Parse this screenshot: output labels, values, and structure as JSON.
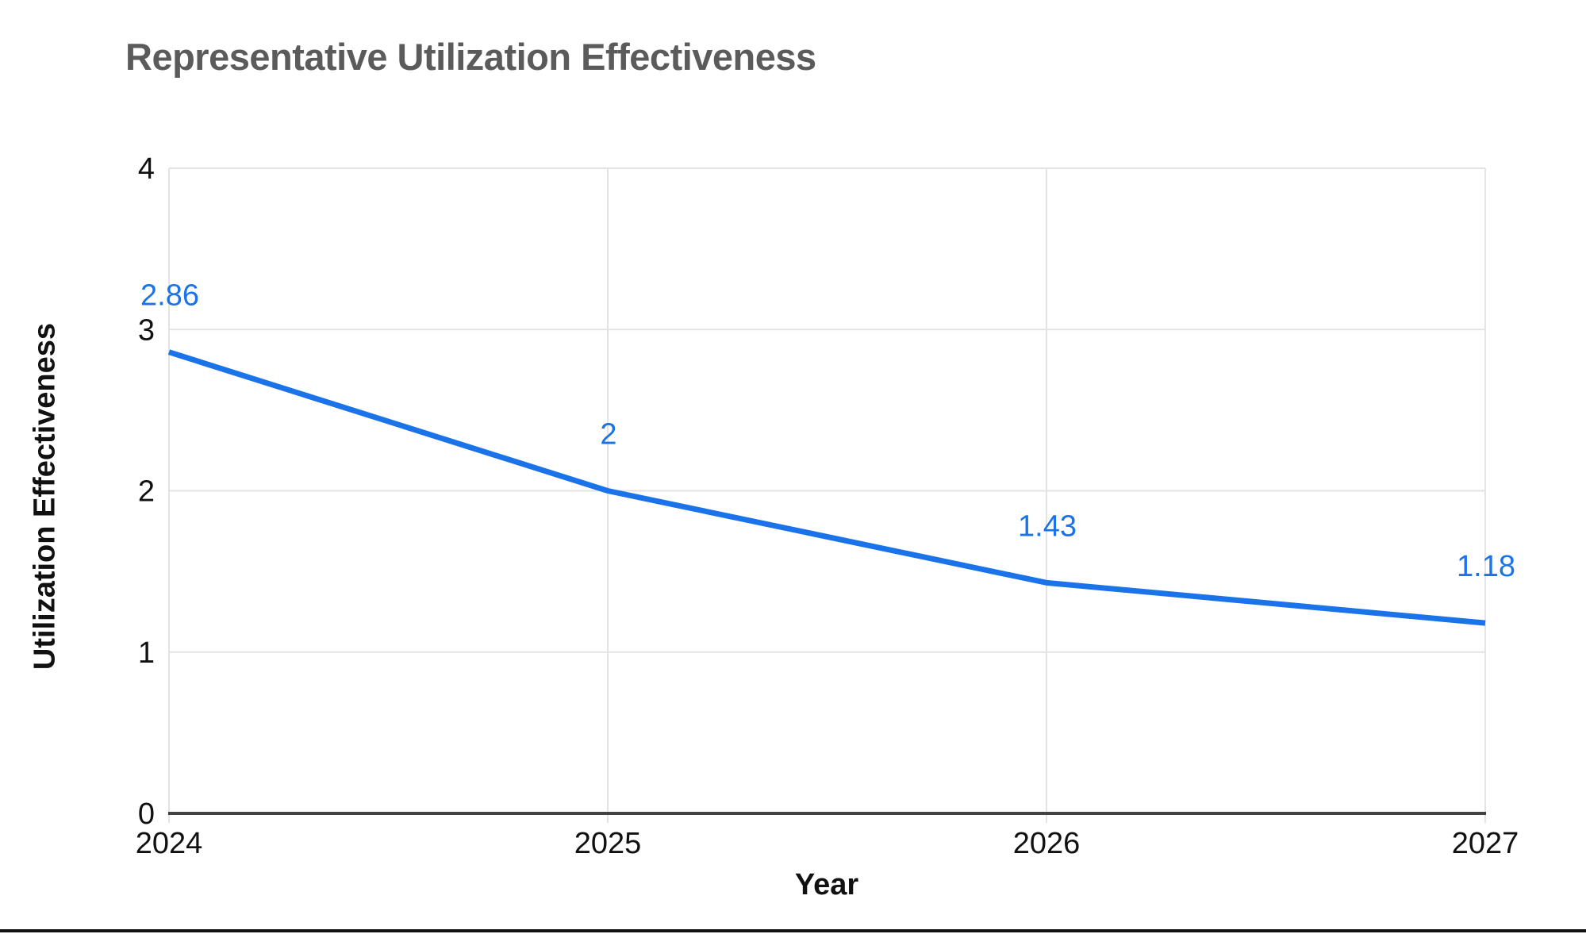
{
  "title": {
    "text": "Representative Utilization Effectiveness",
    "color": "#5b5b5b"
  },
  "chart_data": {
    "type": "line",
    "title": "Representative Utilization Effectiveness",
    "xlabel": "Year",
    "ylabel": "Utilization Effectiveness",
    "categories": [
      "2024",
      "2025",
      "2026",
      "2027"
    ],
    "series": [
      {
        "name": "Utilization Effectiveness",
        "values": [
          2.86,
          2,
          1.43,
          1.18
        ]
      }
    ],
    "point_labels": [
      "2.86",
      "2",
      "1.43",
      "1.18"
    ],
    "y_ticks": [
      0,
      1,
      2,
      3,
      4
    ],
    "ylim": [
      0,
      4
    ],
    "grid": true,
    "legend_position": "none",
    "line_color": "#1a73e8",
    "point_label_color": "#1a73e8",
    "grid_color": "#e3e3e3",
    "axis_line_color": "#424242",
    "tick_label_color": "#111111"
  },
  "page": {
    "bottom_bar_color": "#111111"
  }
}
